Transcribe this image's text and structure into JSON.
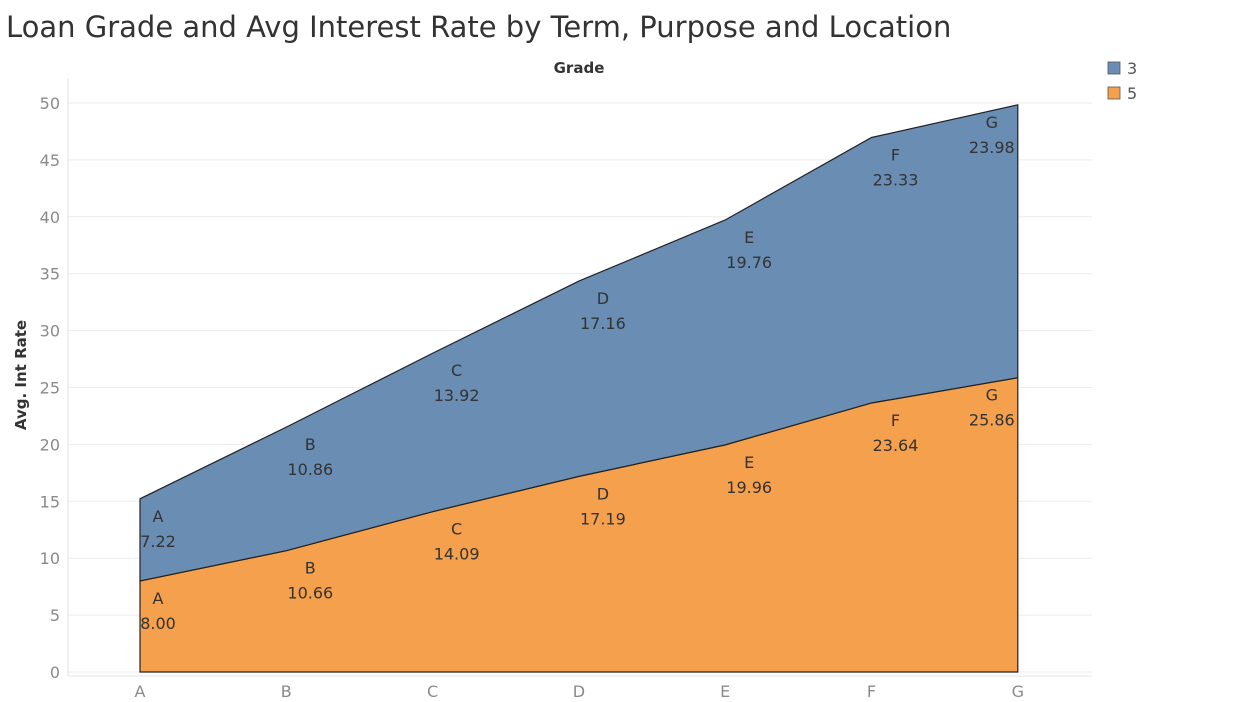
{
  "title": "Loan Grade and Avg Interest Rate by Term, Purpose and Location",
  "chart_data": {
    "type": "area",
    "stacked": true,
    "title": "Loan Grade and Avg Interest Rate by Term, Purpose and Location",
    "xlabel": "Grade",
    "ylabel": "Avg. Int Rate",
    "categories": [
      "A",
      "B",
      "C",
      "D",
      "E",
      "F",
      "G"
    ],
    "ylim": [
      0,
      50
    ],
    "yticks": [
      0,
      5,
      10,
      15,
      20,
      25,
      30,
      35,
      40,
      45,
      50
    ],
    "grid": true,
    "legend_position": "top-right",
    "series": [
      {
        "name": "5",
        "color": "#f5a04c",
        "values": [
          8.0,
          10.66,
          14.09,
          17.19,
          19.96,
          23.64,
          25.86
        ],
        "value_labels": [
          "8.00",
          "10.66",
          "14.09",
          "17.19",
          "19.96",
          "23.64",
          "25.86"
        ]
      },
      {
        "name": "3",
        "color": "#6a8db3",
        "values": [
          7.22,
          10.86,
          13.92,
          17.16,
          19.76,
          23.33,
          23.98
        ],
        "value_labels": [
          "7.22",
          "10.86",
          "13.92",
          "17.16",
          "19.76",
          "23.33",
          "23.98"
        ]
      }
    ],
    "legend": [
      {
        "label": "3",
        "color": "#6a8db3"
      },
      {
        "label": "5",
        "color": "#f5a04c"
      }
    ]
  }
}
